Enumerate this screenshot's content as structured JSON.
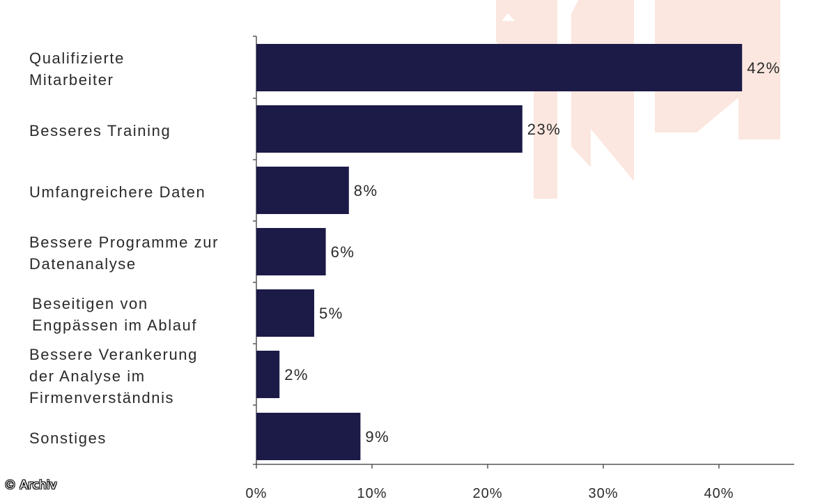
{
  "chart_data": {
    "type": "bar",
    "orientation": "horizontal",
    "categories": [
      "Qualifizierte\nMitarbeiter",
      "Besseres Training",
      "Umfangreichere Daten",
      "Bessere Programme zur\nDatenanalyse",
      "Beseitigen von\nEngpässen im Ablauf",
      "Bessere Verankerung\nder Analyse im\nFirmenverständnis",
      "Sonstiges"
    ],
    "values": [
      42,
      23,
      8,
      6,
      5,
      2,
      9
    ],
    "data_labels": [
      "42%",
      "23%",
      "8%",
      "6%",
      "5%",
      "2%",
      "9%"
    ],
    "xticks": [
      "0%",
      "10%",
      "20%",
      "30%",
      "40%"
    ],
    "xlim": [
      0,
      46.5
    ],
    "title": "",
    "xlabel": "",
    "ylabel": "",
    "grid": false,
    "legend": "none",
    "colors": {
      "bar": "#1c1a47",
      "axis": "#555555",
      "text": "#2a2a2a",
      "watermark": "#fbe7df"
    }
  },
  "copyright": "© Archiv"
}
